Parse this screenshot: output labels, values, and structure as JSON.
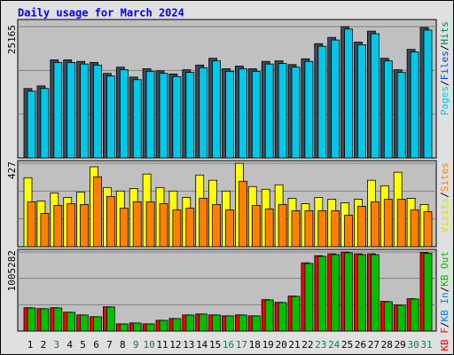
{
  "legend_separator": "/",
  "chart_data": [
    {
      "type": "bar",
      "title": "Daily usage for March 2024",
      "legend": [
        {
          "name": "Pages",
          "color": "#00c8e8"
        },
        {
          "name": "Files",
          "color": "#0040ff"
        },
        {
          "name": "Hits",
          "color": "#00805c"
        }
      ],
      "series": [
        {
          "color": "#3a4a5a",
          "values": [
            13300,
            13800,
            18800,
            18800,
            18500,
            18300,
            16200,
            17400,
            15500,
            17100,
            16700,
            16100,
            16900,
            17800,
            19100,
            17100,
            17600,
            17100,
            18500,
            18600,
            17900,
            19000,
            21900,
            23100,
            25165,
            22200,
            24300,
            19100,
            16900,
            20800,
            25000
          ]
        },
        {
          "color": "#00c8e8",
          "values": [
            12800,
            13300,
            18300,
            18300,
            18000,
            17800,
            15700,
            16900,
            15000,
            16600,
            16200,
            15600,
            16400,
            17300,
            18600,
            16600,
            17100,
            16600,
            18000,
            18100,
            17400,
            18500,
            21400,
            22600,
            24700,
            21700,
            23800,
            18600,
            16400,
            20300,
            24500
          ]
        }
      ],
      "ylim": [
        0,
        25165
      ],
      "yticks": [
        25165
      ],
      "grid": true
    },
    {
      "type": "bar",
      "legend": [
        {
          "name": "Visits",
          "color": "#e0e000"
        },
        {
          "name": "Sites",
          "color": "#ff8000"
        }
      ],
      "series": [
        {
          "color": "#ffff00",
          "values": [
            353,
            234,
            275,
            252,
            280,
            409,
            303,
            285,
            298,
            372,
            303,
            285,
            252,
            367,
            340,
            285,
            427,
            308,
            294,
            317,
            248,
            220,
            252,
            243,
            225,
            243,
            340,
            312,
            381,
            248,
            216
          ]
        },
        {
          "color": "#ff8000",
          "values": [
            230,
            170,
            211,
            220,
            216,
            358,
            257,
            197,
            230,
            230,
            220,
            188,
            197,
            248,
            216,
            188,
            335,
            211,
            193,
            216,
            184,
            184,
            184,
            184,
            161,
            207,
            230,
            243,
            243,
            188,
            179
          ]
        }
      ],
      "ylim": [
        0,
        427
      ],
      "yticks": [
        427
      ],
      "grid": true
    },
    {
      "type": "bar",
      "legend": [
        {
          "name": "KB F",
          "color": "#ff0000"
        },
        {
          "name": "KB In",
          "color": "#0080ff"
        },
        {
          "name": "KB Out",
          "color": "#00c000"
        }
      ],
      "series": [
        {
          "color": "#ff0000",
          "values": [
            297000,
            285600,
            297000,
            239900,
            205600,
            182800,
            308400,
            91400,
            102800,
            91400,
            137100,
            159900,
            205600,
            217100,
            205600,
            194200,
            205600,
            194200,
            399800,
            365600,
            445500,
            868200,
            959600,
            982500,
            1005282,
            982500,
            982500,
            377000,
            331300,
            411300,
            1000000
          ]
        },
        {
          "color": "#00c000",
          "values": [
            294000,
            282800,
            294000,
            237500,
            203500,
            181000,
            305300,
            90500,
            101800,
            90500,
            135700,
            158300,
            203500,
            214900,
            203500,
            192300,
            203500,
            192300,
            395800,
            362000,
            441000,
            859500,
            950000,
            972700,
            995200,
            972700,
            972700,
            373200,
            328000,
            407200,
            990000
          ]
        }
      ],
      "ylim": [
        0,
        1005282
      ],
      "yticks": [
        1005282
      ],
      "grid": true,
      "categories": [
        "1",
        "2",
        "3",
        "4",
        "5",
        "6",
        "7",
        "8",
        "9",
        "10",
        "11",
        "12",
        "13",
        "14",
        "15",
        "16",
        "17",
        "18",
        "19",
        "20",
        "21",
        "22",
        "23",
        "24",
        "25",
        "26",
        "27",
        "28",
        "29",
        "30",
        "31"
      ],
      "category_colors": [
        "#000000",
        "#000000",
        "#00805c",
        "#000000",
        "#000000",
        "#000000",
        "#000000",
        "#000000",
        "#00805c",
        "#00805c",
        "#000000",
        "#000000",
        "#000000",
        "#000000",
        "#000000",
        "#00805c",
        "#00805c",
        "#000000",
        "#000000",
        "#000000",
        "#000000",
        "#000000",
        "#00805c",
        "#00805c",
        "#000000",
        "#000000",
        "#000000",
        "#000000",
        "#000000",
        "#00805c",
        "#00805c"
      ]
    }
  ]
}
